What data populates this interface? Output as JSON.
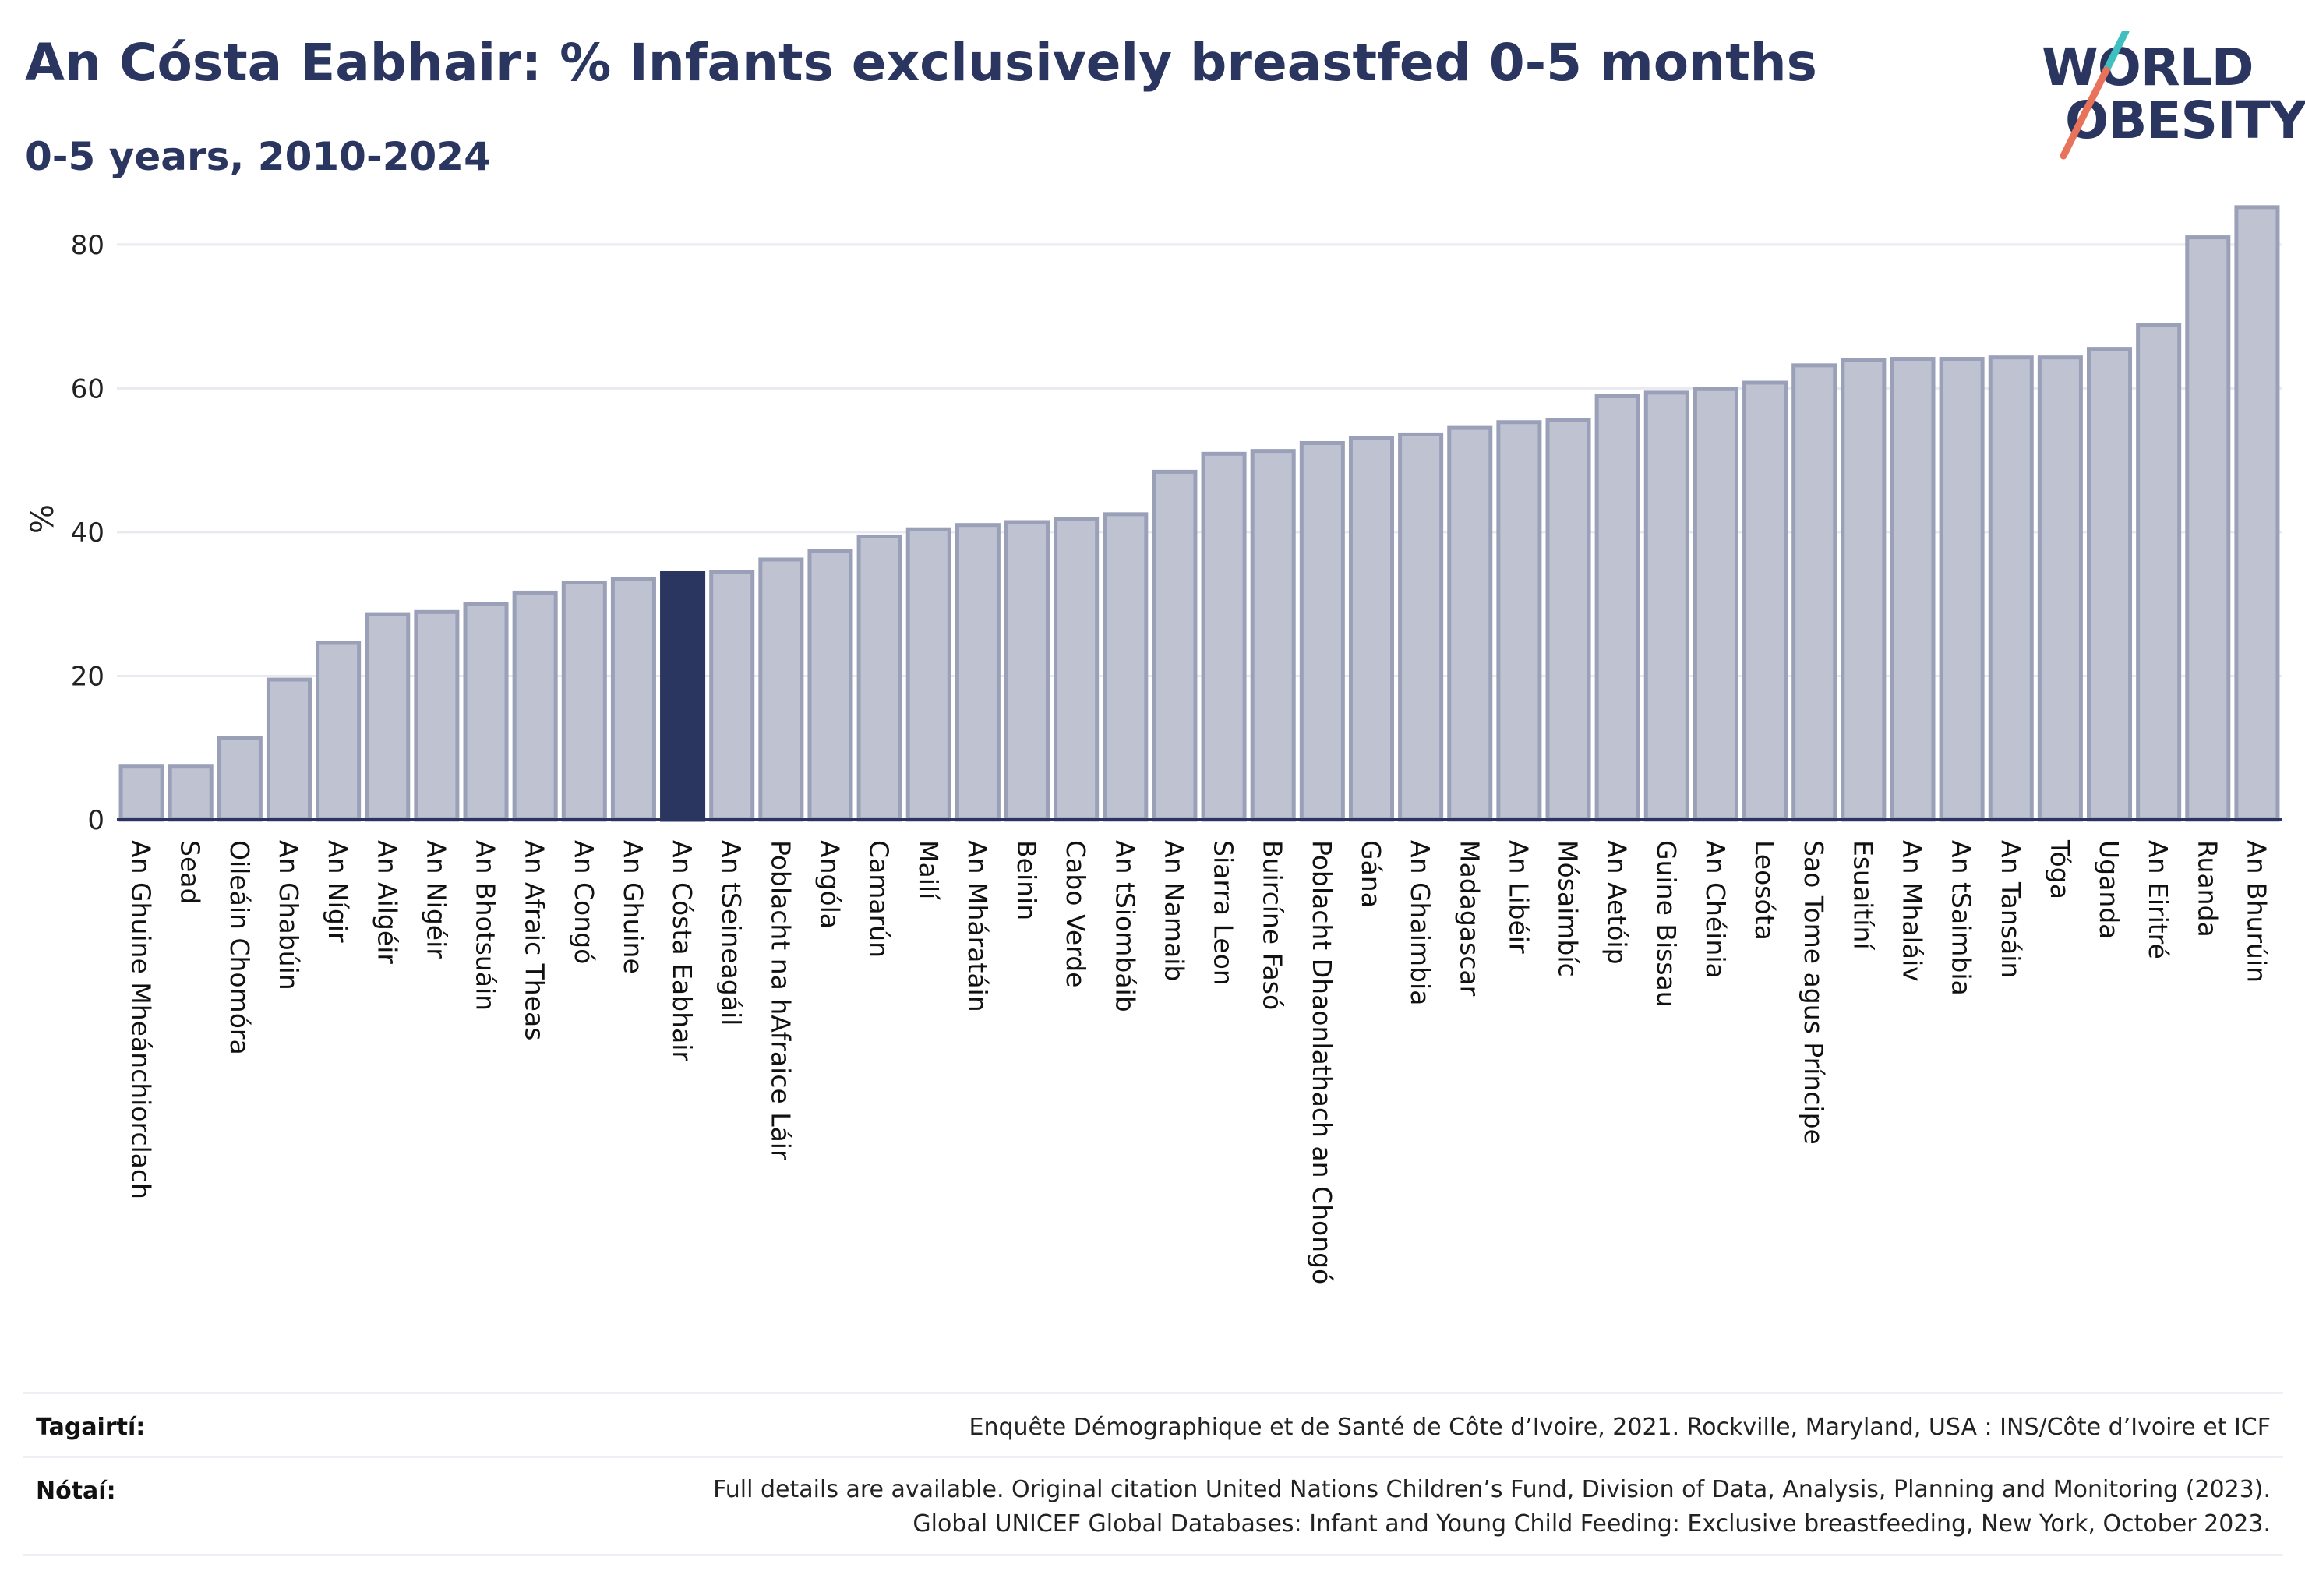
{
  "header": {
    "title": "An Cósta Eabhair: % Infants exclusively breastfed 0-5 months",
    "subtitle": "0-5 years, 2010-2024"
  },
  "logo": {
    "line1": "WORLD",
    "line2": "OBESITY"
  },
  "colors": {
    "bar": "#bfc3d1",
    "bar_border": "#9aa0b8",
    "highlight": "#2a3560",
    "grid": "#e8eaf0",
    "axis": "#2a3560",
    "logo_teal": "#3fbfbf",
    "logo_coral": "#e8735a"
  },
  "chart_data": {
    "type": "bar",
    "ylabel": "%",
    "ylim": [
      0,
      88
    ],
    "yticks": [
      0,
      20,
      40,
      60,
      80
    ],
    "grid": true,
    "highlight_category": "An Cósta Eabhair",
    "categories": [
      "An Ghuine Mheánchiorclach",
      "Sead",
      "Oileáin Chomóra",
      "An Ghabúin",
      "An Nígir",
      "An Ailgéir",
      "An Nigéir",
      "An Bhotsuáin",
      "An Afraic Theas",
      "An Congó",
      "An Ghuine",
      "An Cósta Eabhair",
      "An tSeineagáil",
      "Poblacht na hAfraice Láir",
      "Angóla",
      "Camarún",
      "Mailí",
      "An Mháratáin",
      "Beinin",
      "Cabo Verde",
      "An tSiombáib",
      "An Namaib",
      "Siarra Leon",
      "Buircíne Fasó",
      "Poblacht Dhaonlathach an Chongó",
      "Gána",
      "An Ghaimbia",
      "Madagascar",
      "An Libéir",
      "Mósaimbíc",
      "An Aetóip",
      "Guine Bissau",
      "An Chéinia",
      "Leosóta",
      "Sao Tome agus Príncipe",
      "Esuaitíní",
      "An Mhaláiv",
      "An tSaimbia",
      "An Tansáin",
      "Tóga",
      "Uganda",
      "An Eiritré",
      "Ruanda",
      "An Bhurúin"
    ],
    "values": [
      7.4,
      7.4,
      11.4,
      19.5,
      24.6,
      28.6,
      28.9,
      30.0,
      31.6,
      33.0,
      33.5,
      34.3,
      34.5,
      36.2,
      37.4,
      39.4,
      40.4,
      41.0,
      41.4,
      41.8,
      42.5,
      48.4,
      50.9,
      51.3,
      52.4,
      53.1,
      53.6,
      54.5,
      55.3,
      55.6,
      58.9,
      59.4,
      59.9,
      60.8,
      63.2,
      63.9,
      64.1,
      64.1,
      64.3,
      64.3,
      65.5,
      68.8,
      81.0,
      85.2
    ]
  },
  "footer": {
    "source_label": "Tagairtí:",
    "source_text": "Enquête Démographique et de Santé de Côte d’Ivoire, 2021. Rockville, Maryland, USA : INS/Côte d’Ivoire et ICF",
    "notes_label": "Nótaí:",
    "notes_line1": "Full details are available. Original citation United Nations Children’s Fund, Division of Data, Analysis, Planning and Monitoring (2023).",
    "notes_line2": "Global UNICEF Global Databases: Infant and Young Child Feeding: Exclusive breastfeeding, New York, October 2023."
  }
}
